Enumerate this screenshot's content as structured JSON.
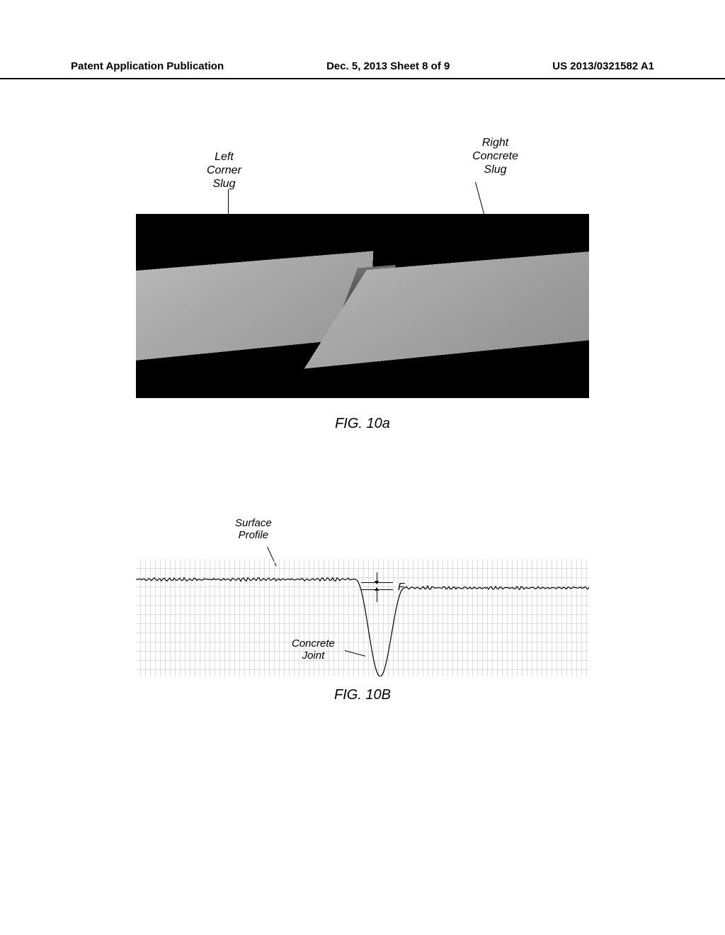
{
  "header": {
    "left": "Patent Application Publication",
    "center": "Dec. 5, 2013  Sheet 8 of 9",
    "right": "US 2013/0321582 A1"
  },
  "figA": {
    "labelLeft": "Left\nCorner\nSlug",
    "labelRight": "Right\nConcrete\nSlug",
    "caption": "FIG. 10a",
    "colors": {
      "background": "#000000",
      "slab": "#a8a8a8",
      "joint": "#505050"
    }
  },
  "figB": {
    "labelSurface": "Surface\nProfile",
    "fLabel": "F",
    "labelConcrete": "Concrete\nJoint",
    "caption": "FIG. 10B",
    "profile": {
      "baselineLeftY": 28,
      "baselineRightY": 40,
      "dipX": 345,
      "dipWidth": 70,
      "dipDepth": 165,
      "gridColor": "#dddddd",
      "lineColor": "#000000"
    }
  }
}
